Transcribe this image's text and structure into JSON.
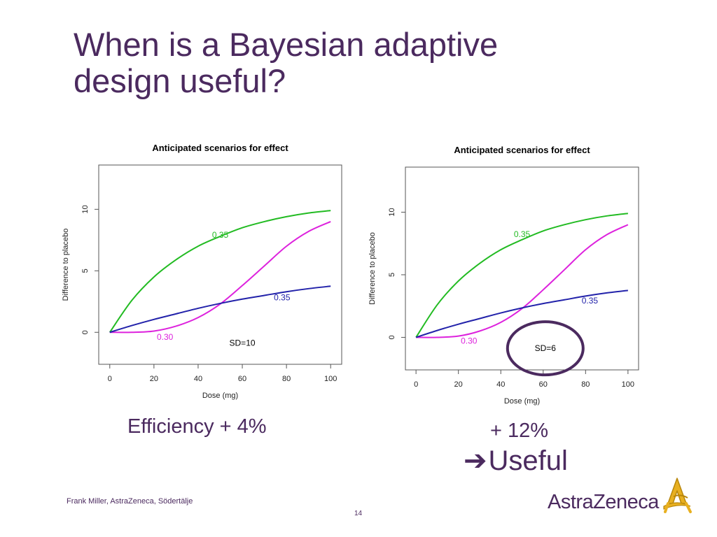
{
  "slide": {
    "title_line1": "When is a Bayesian adaptive",
    "title_line2": "design useful?",
    "efficiency_left": "Efficiency + 4%",
    "efficiency_right": "+ 12%",
    "verdict_arrow": "➔",
    "verdict": "Useful",
    "footer": "Frank Miller, AstraZeneca, Södertälje",
    "page_number": "14",
    "logo_text": "AstraZeneca",
    "colors": {
      "title": "#4b2a5f",
      "green": "#22bb22",
      "magenta": "#dd22dd",
      "blue": "#2222aa",
      "highlight_circle": "#4b2a5f"
    }
  },
  "chart_data": [
    {
      "type": "line",
      "title": "Anticipated scenarios for effect",
      "xlabel": "Dose (mg)",
      "ylabel": "Difference to placebo",
      "xlim": [
        -5,
        105
      ],
      "ylim": [
        -2.6,
        13.6
      ],
      "x_ticks": [
        0,
        20,
        40,
        60,
        80,
        100
      ],
      "y_ticks": [
        0,
        5,
        10
      ],
      "grid": false,
      "x": [
        0,
        10,
        20,
        30,
        40,
        50,
        60,
        70,
        80,
        90,
        100
      ],
      "series": [
        {
          "color": "#22bb22",
          "values": [
            0,
            2.6,
            4.5,
            5.9,
            7.0,
            7.8,
            8.5,
            9.0,
            9.4,
            9.7,
            9.9
          ]
        },
        {
          "color": "#dd22dd",
          "values": [
            0,
            0,
            0.1,
            0.5,
            1.2,
            2.3,
            3.8,
            5.4,
            7.0,
            8.2,
            9.0
          ]
        },
        {
          "color": "#2222aa",
          "values": [
            0,
            0.55,
            1.05,
            1.5,
            1.95,
            2.35,
            2.7,
            3.0,
            3.3,
            3.55,
            3.75
          ]
        }
      ],
      "annotations": [
        {
          "text": "0.35",
          "x": 50,
          "y": 7.7,
          "color": "#22bb22"
        },
        {
          "text": "0.35",
          "x": 78,
          "y": 2.6,
          "color": "#2222aa"
        },
        {
          "text": "0.30",
          "x": 25,
          "y": -0.6,
          "color": "#dd22dd"
        },
        {
          "text": "SD=10",
          "x": 60,
          "y": -1.1,
          "color": "#000000"
        }
      ]
    },
    {
      "type": "line",
      "title": "Anticipated scenarios for effect",
      "xlabel": "Dose (mg)",
      "ylabel": "Difference to placebo",
      "xlim": [
        -5,
        105
      ],
      "ylim": [
        -2.6,
        13.6
      ],
      "x_ticks": [
        0,
        20,
        40,
        60,
        80,
        100
      ],
      "y_ticks": [
        0,
        5,
        10
      ],
      "grid": false,
      "x": [
        0,
        10,
        20,
        30,
        40,
        50,
        60,
        70,
        80,
        90,
        100
      ],
      "series": [
        {
          "color": "#22bb22",
          "values": [
            0,
            2.6,
            4.5,
            5.9,
            7.0,
            7.8,
            8.5,
            9.0,
            9.4,
            9.7,
            9.9
          ]
        },
        {
          "color": "#dd22dd",
          "values": [
            0,
            0,
            0.1,
            0.5,
            1.2,
            2.3,
            3.8,
            5.4,
            7.0,
            8.2,
            9.0
          ]
        },
        {
          "color": "#2222aa",
          "values": [
            0,
            0.55,
            1.05,
            1.5,
            1.95,
            2.35,
            2.7,
            3.0,
            3.3,
            3.55,
            3.75
          ]
        }
      ],
      "annotations": [
        {
          "text": "0.35",
          "x": 50,
          "y": 8.0,
          "color": "#22bb22"
        },
        {
          "text": "0.35",
          "x": 82,
          "y": 2.7,
          "color": "#2222aa"
        },
        {
          "text": "0.30",
          "x": 25,
          "y": -0.5,
          "color": "#dd22dd"
        },
        {
          "text": "SD=6",
          "x": 61,
          "y": -1.1,
          "color": "#000000",
          "circled": true
        }
      ]
    }
  ]
}
